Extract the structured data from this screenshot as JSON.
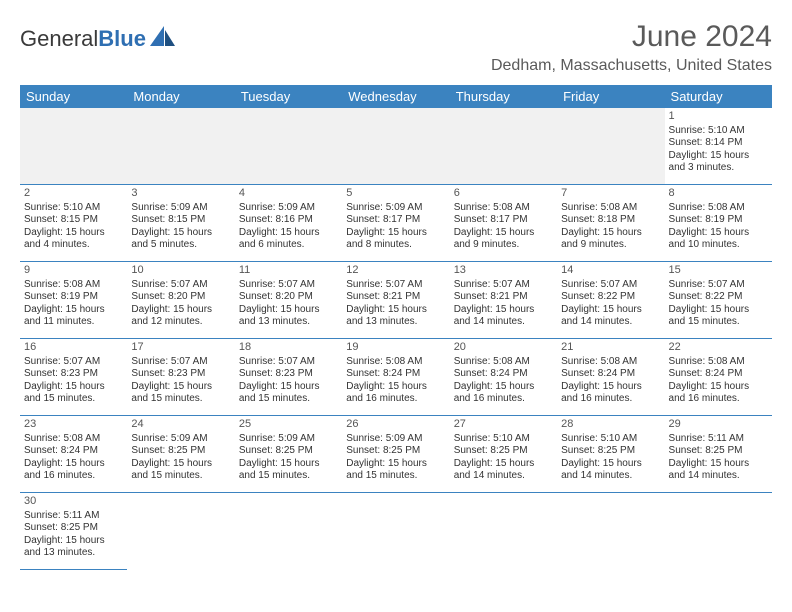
{
  "brand": {
    "text_dark": "General",
    "text_blue": "Blue"
  },
  "title": "June 2024",
  "location": "Dedham, Massachusetts, United States",
  "header_bg": "#3b83c0",
  "day_headers": [
    "Sunday",
    "Monday",
    "Tuesday",
    "Wednesday",
    "Thursday",
    "Friday",
    "Saturday"
  ],
  "weeks": [
    [
      {
        "empty": true
      },
      {
        "empty": true
      },
      {
        "empty": true
      },
      {
        "empty": true
      },
      {
        "empty": true
      },
      {
        "empty": true
      },
      {
        "num": "1",
        "sunrise": "Sunrise: 5:10 AM",
        "sunset": "Sunset: 8:14 PM",
        "daylight": "Daylight: 15 hours and 3 minutes."
      }
    ],
    [
      {
        "num": "2",
        "sunrise": "Sunrise: 5:10 AM",
        "sunset": "Sunset: 8:15 PM",
        "daylight": "Daylight: 15 hours and 4 minutes."
      },
      {
        "num": "3",
        "sunrise": "Sunrise: 5:09 AM",
        "sunset": "Sunset: 8:15 PM",
        "daylight": "Daylight: 15 hours and 5 minutes."
      },
      {
        "num": "4",
        "sunrise": "Sunrise: 5:09 AM",
        "sunset": "Sunset: 8:16 PM",
        "daylight": "Daylight: 15 hours and 6 minutes."
      },
      {
        "num": "5",
        "sunrise": "Sunrise: 5:09 AM",
        "sunset": "Sunset: 8:17 PM",
        "daylight": "Daylight: 15 hours and 8 minutes."
      },
      {
        "num": "6",
        "sunrise": "Sunrise: 5:08 AM",
        "sunset": "Sunset: 8:17 PM",
        "daylight": "Daylight: 15 hours and 9 minutes."
      },
      {
        "num": "7",
        "sunrise": "Sunrise: 5:08 AM",
        "sunset": "Sunset: 8:18 PM",
        "daylight": "Daylight: 15 hours and 9 minutes."
      },
      {
        "num": "8",
        "sunrise": "Sunrise: 5:08 AM",
        "sunset": "Sunset: 8:19 PM",
        "daylight": "Daylight: 15 hours and 10 minutes."
      }
    ],
    [
      {
        "num": "9",
        "sunrise": "Sunrise: 5:08 AM",
        "sunset": "Sunset: 8:19 PM",
        "daylight": "Daylight: 15 hours and 11 minutes."
      },
      {
        "num": "10",
        "sunrise": "Sunrise: 5:07 AM",
        "sunset": "Sunset: 8:20 PM",
        "daylight": "Daylight: 15 hours and 12 minutes."
      },
      {
        "num": "11",
        "sunrise": "Sunrise: 5:07 AM",
        "sunset": "Sunset: 8:20 PM",
        "daylight": "Daylight: 15 hours and 13 minutes."
      },
      {
        "num": "12",
        "sunrise": "Sunrise: 5:07 AM",
        "sunset": "Sunset: 8:21 PM",
        "daylight": "Daylight: 15 hours and 13 minutes."
      },
      {
        "num": "13",
        "sunrise": "Sunrise: 5:07 AM",
        "sunset": "Sunset: 8:21 PM",
        "daylight": "Daylight: 15 hours and 14 minutes."
      },
      {
        "num": "14",
        "sunrise": "Sunrise: 5:07 AM",
        "sunset": "Sunset: 8:22 PM",
        "daylight": "Daylight: 15 hours and 14 minutes."
      },
      {
        "num": "15",
        "sunrise": "Sunrise: 5:07 AM",
        "sunset": "Sunset: 8:22 PM",
        "daylight": "Daylight: 15 hours and 15 minutes."
      }
    ],
    [
      {
        "num": "16",
        "sunrise": "Sunrise: 5:07 AM",
        "sunset": "Sunset: 8:23 PM",
        "daylight": "Daylight: 15 hours and 15 minutes."
      },
      {
        "num": "17",
        "sunrise": "Sunrise: 5:07 AM",
        "sunset": "Sunset: 8:23 PM",
        "daylight": "Daylight: 15 hours and 15 minutes."
      },
      {
        "num": "18",
        "sunrise": "Sunrise: 5:07 AM",
        "sunset": "Sunset: 8:23 PM",
        "daylight": "Daylight: 15 hours and 15 minutes."
      },
      {
        "num": "19",
        "sunrise": "Sunrise: 5:08 AM",
        "sunset": "Sunset: 8:24 PM",
        "daylight": "Daylight: 15 hours and 16 minutes."
      },
      {
        "num": "20",
        "sunrise": "Sunrise: 5:08 AM",
        "sunset": "Sunset: 8:24 PM",
        "daylight": "Daylight: 15 hours and 16 minutes."
      },
      {
        "num": "21",
        "sunrise": "Sunrise: 5:08 AM",
        "sunset": "Sunset: 8:24 PM",
        "daylight": "Daylight: 15 hours and 16 minutes."
      },
      {
        "num": "22",
        "sunrise": "Sunrise: 5:08 AM",
        "sunset": "Sunset: 8:24 PM",
        "daylight": "Daylight: 15 hours and 16 minutes."
      }
    ],
    [
      {
        "num": "23",
        "sunrise": "Sunrise: 5:08 AM",
        "sunset": "Sunset: 8:24 PM",
        "daylight": "Daylight: 15 hours and 16 minutes."
      },
      {
        "num": "24",
        "sunrise": "Sunrise: 5:09 AM",
        "sunset": "Sunset: 8:25 PM",
        "daylight": "Daylight: 15 hours and 15 minutes."
      },
      {
        "num": "25",
        "sunrise": "Sunrise: 5:09 AM",
        "sunset": "Sunset: 8:25 PM",
        "daylight": "Daylight: 15 hours and 15 minutes."
      },
      {
        "num": "26",
        "sunrise": "Sunrise: 5:09 AM",
        "sunset": "Sunset: 8:25 PM",
        "daylight": "Daylight: 15 hours and 15 minutes."
      },
      {
        "num": "27",
        "sunrise": "Sunrise: 5:10 AM",
        "sunset": "Sunset: 8:25 PM",
        "daylight": "Daylight: 15 hours and 14 minutes."
      },
      {
        "num": "28",
        "sunrise": "Sunrise: 5:10 AM",
        "sunset": "Sunset: 8:25 PM",
        "daylight": "Daylight: 15 hours and 14 minutes."
      },
      {
        "num": "29",
        "sunrise": "Sunrise: 5:11 AM",
        "sunset": "Sunset: 8:25 PM",
        "daylight": "Daylight: 15 hours and 14 minutes."
      }
    ],
    [
      {
        "num": "30",
        "sunrise": "Sunrise: 5:11 AM",
        "sunset": "Sunset: 8:25 PM",
        "daylight": "Daylight: 15 hours and 13 minutes."
      },
      {
        "empty": true,
        "blank": true
      },
      {
        "empty": true,
        "blank": true
      },
      {
        "empty": true,
        "blank": true
      },
      {
        "empty": true,
        "blank": true
      },
      {
        "empty": true,
        "blank": true
      },
      {
        "empty": true,
        "blank": true
      }
    ]
  ]
}
